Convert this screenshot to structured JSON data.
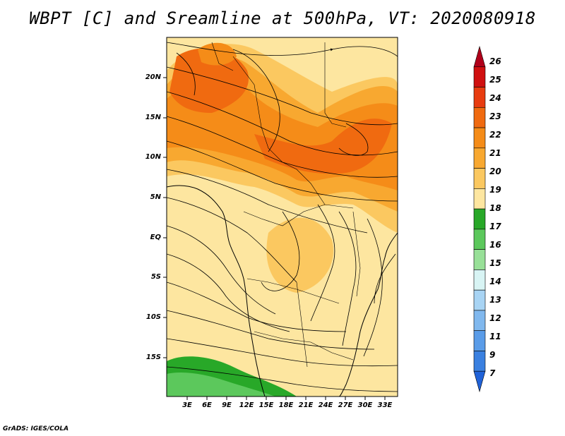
{
  "title": "WBPT [C] and Sreamline at 500hPa, VT: 2020080918",
  "credit": "GrADS: IGES/COLA",
  "map": {
    "lat_labels": [
      "20N",
      "15N",
      "10N",
      "5N",
      "EQ",
      "5S",
      "10S",
      "15S"
    ],
    "lon_labels": [
      "3E",
      "6E",
      "9E",
      "12E",
      "15E",
      "18E",
      "21E",
      "24E",
      "27E",
      "30E",
      "33E"
    ]
  },
  "colorbar": {
    "labels": [
      "26",
      "25",
      "24",
      "23",
      "22",
      "21",
      "20",
      "19",
      "18",
      "17",
      "16",
      "15",
      "14",
      "13",
      "12",
      "11",
      "9",
      "7"
    ],
    "colors": [
      "#b0001a",
      "#d01010",
      "#e83c10",
      "#f06a10",
      "#f58c18",
      "#f8a830",
      "#fbc860",
      "#fde6a0",
      "#28a828",
      "#5cc85c",
      "#98e098",
      "#d8f4f4",
      "#a8d4f4",
      "#80b8ee",
      "#5a9ce8",
      "#3a80e0",
      "#2062d8"
    ]
  }
}
